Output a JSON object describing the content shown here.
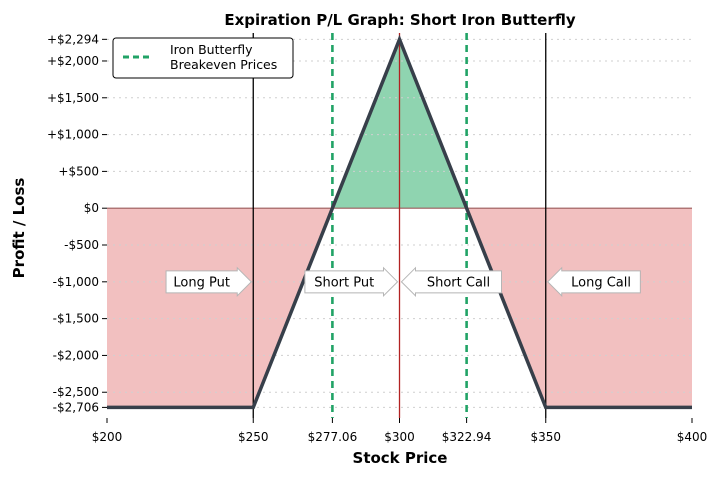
{
  "chart_data": {
    "type": "line",
    "title": "Expiration P/L Graph: Short Iron Butterfly",
    "xlabel": "Stock Price",
    "ylabel": "Profit / Loss",
    "xlim": [
      200,
      400
    ],
    "ylim": [
      -2850,
      2380
    ],
    "grid": "horizontal dotted",
    "legend_placement": "top-left",
    "x_ticks": [
      {
        "value": 200,
        "label": "$200"
      },
      {
        "value": 250,
        "label": "$250"
      },
      {
        "value": 277.06,
        "label": "$277.06"
      },
      {
        "value": 300,
        "label": "$300"
      },
      {
        "value": 322.94,
        "label": "$322.94"
      },
      {
        "value": 350,
        "label": "$350"
      },
      {
        "value": 400,
        "label": "$400"
      }
    ],
    "y_ticks": [
      {
        "value": 2294,
        "label": "+$2,294"
      },
      {
        "value": 2000,
        "label": "+$2,000"
      },
      {
        "value": 1500,
        "label": "+$1,500"
      },
      {
        "value": 1000,
        "label": "+$1,000"
      },
      {
        "value": 500,
        "label": "+$500"
      },
      {
        "value": 0,
        "label": "$0"
      },
      {
        "value": -500,
        "label": "-$500"
      },
      {
        "value": -1000,
        "label": "-$1,000"
      },
      {
        "value": -1500,
        "label": "-$1,500"
      },
      {
        "value": -2000,
        "label": "-$2,000"
      },
      {
        "value": -2500,
        "label": "-$2,500"
      },
      {
        "value": -2706,
        "label": "-$2,706"
      }
    ],
    "payoff": {
      "x": [
        200,
        250,
        300,
        350,
        400
      ],
      "y": [
        -2706,
        -2706,
        2294,
        -2706,
        -2706
      ],
      "color": "#373f4a"
    },
    "breakevens": {
      "name": "Iron Butterfly\nBreakeven Prices",
      "values": [
        277.06,
        322.94
      ],
      "color": "#21a366"
    },
    "strike_lines": [
      {
        "x": 250,
        "color": "#000000"
      },
      {
        "x": 300,
        "color": "#b22222"
      },
      {
        "x": 350,
        "color": "#000000"
      }
    ],
    "fills": {
      "profit": "#8fd4b0",
      "loss": "#f2c0c0",
      "zero_line": "#9a5a5a"
    },
    "annotations": [
      {
        "label": "Long Put",
        "x": 250,
        "y": -1000,
        "arrow": "right"
      },
      {
        "label": "Short Put",
        "x": 300,
        "y": -1000,
        "arrow": "right"
      },
      {
        "label": "Short Call",
        "x": 300,
        "y": -1000,
        "arrow": "left"
      },
      {
        "label": "Long Call",
        "x": 350,
        "y": -1000,
        "arrow": "left"
      }
    ]
  }
}
